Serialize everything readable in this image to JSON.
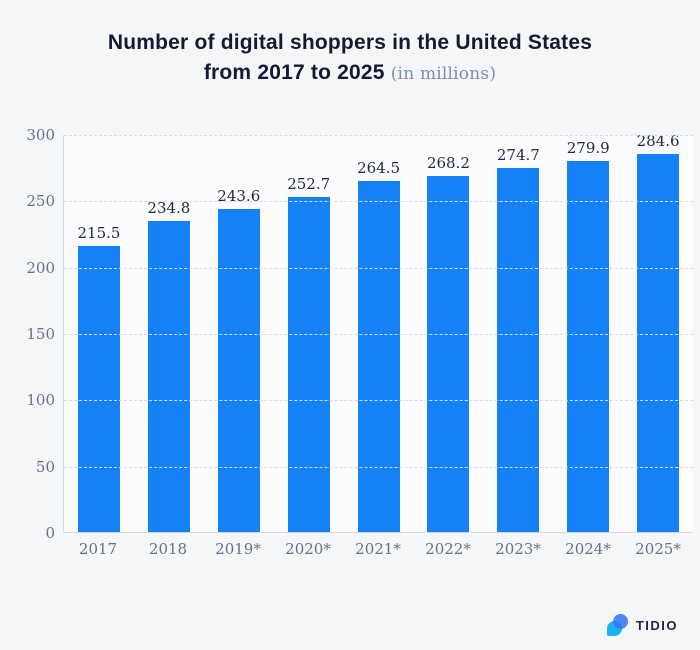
{
  "title": {
    "line1": "Number of digital shoppers in the United States",
    "line2": "from 2017 to 2025",
    "subtitle": "(in millions)"
  },
  "chart_data": {
    "type": "bar",
    "title": "Number of digital shoppers in the United States from 2017 to 2025 (in millions)",
    "categories": [
      "2017",
      "2018",
      "2019*",
      "2020*",
      "2021*",
      "2022*",
      "2023*",
      "2024*",
      "2025*"
    ],
    "values": [
      215.5,
      234.8,
      243.6,
      252.7,
      264.5,
      268.2,
      274.7,
      279.9,
      284.6
    ],
    "xlabel": "",
    "ylabel": "",
    "ylim": [
      0,
      300
    ],
    "yticks": [
      0,
      50,
      100,
      150,
      200,
      250,
      300
    ],
    "grid": "horizontal-dashed",
    "legend": "none",
    "bar_color": "#1581f6"
  },
  "colors": {
    "background": "#f5f6f8",
    "plot_background": "#fcfcfe",
    "bar": "#1581f6",
    "gridline": "#d8dbe5",
    "axis_text": "#64718f",
    "value_text": "#1e2a40",
    "title_text": "#111c33",
    "subtitle_text": "#7e8db3",
    "logo_cyan": "#19b2f4",
    "logo_blue": "#3577f1"
  },
  "footer": {
    "brand": "TIDIO"
  }
}
